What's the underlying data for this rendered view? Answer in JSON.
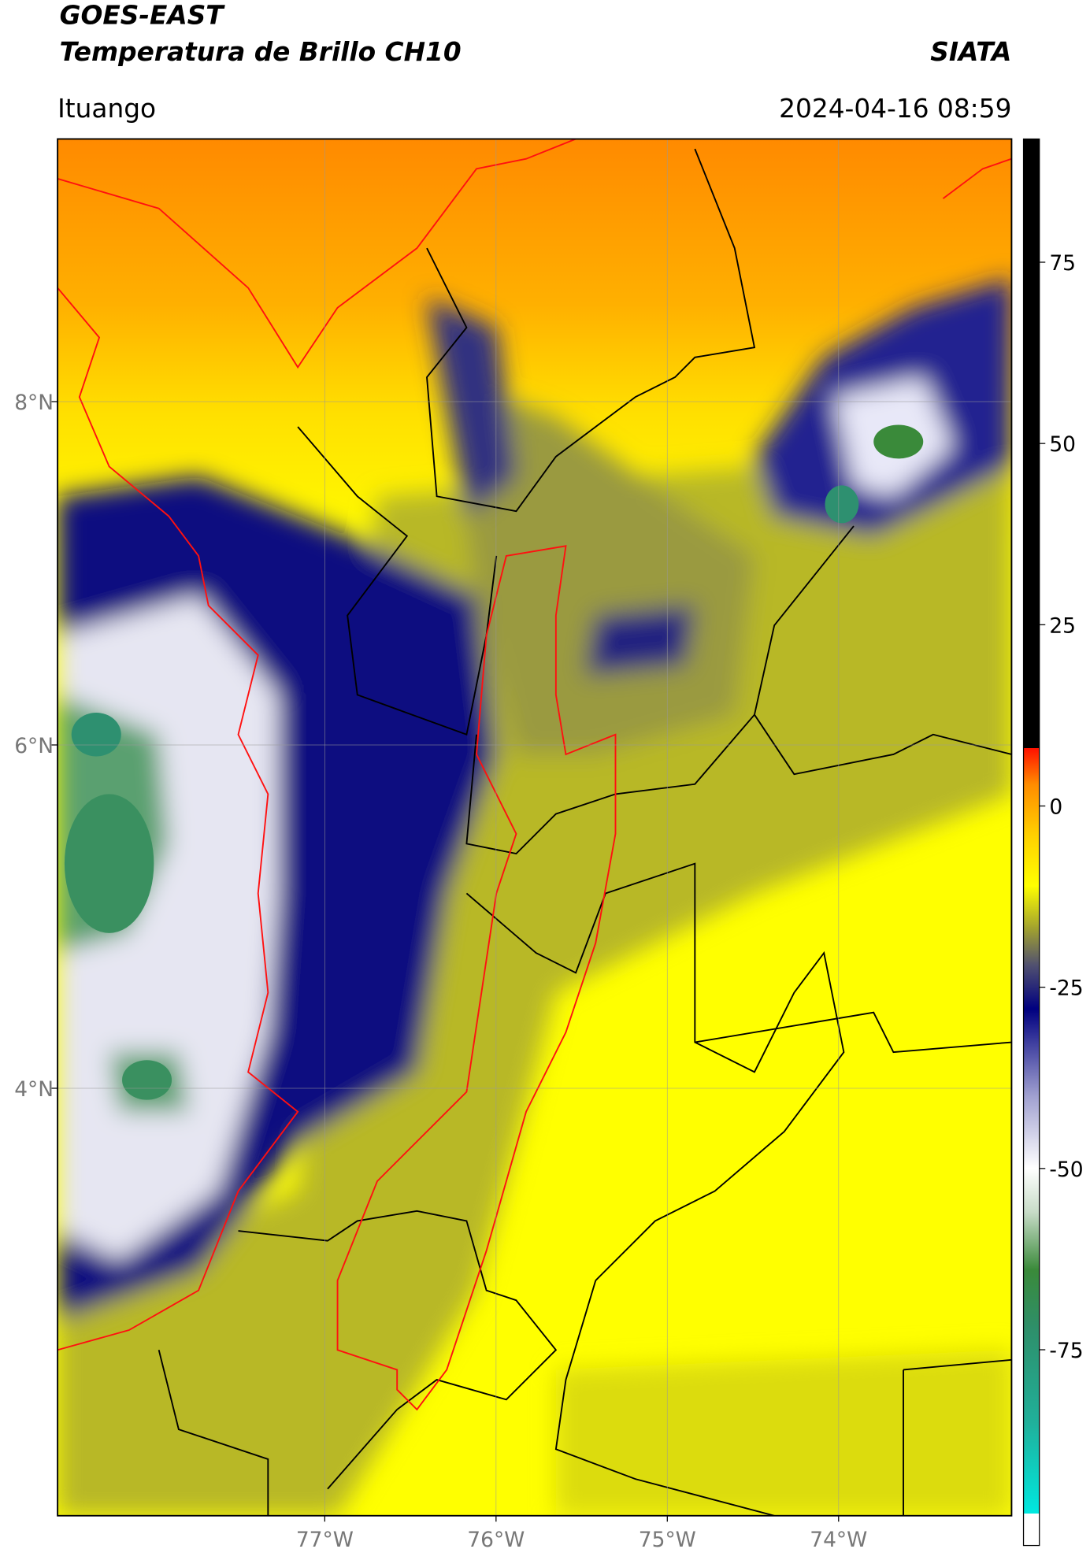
{
  "header": {
    "title": "GOES-EAST",
    "subtitle": "Temperatura de Brillo CH10",
    "brand": "SIATA",
    "location": "Ituango",
    "datetime": "2024-04-16 08:59"
  },
  "map": {
    "lonlim": [
      -78.56,
      -72.99
    ],
    "latlim": [
      1.51,
      9.53
    ],
    "lon_ticks": [
      {
        "value": -77,
        "label": "77°W"
      },
      {
        "value": -76,
        "label": "76°W"
      },
      {
        "value": -75,
        "label": "75°W"
      },
      {
        "value": -74,
        "label": "74°W"
      }
    ],
    "lat_ticks": [
      {
        "value": 8,
        "label": "8°N"
      },
      {
        "value": 6,
        "label": "6°N"
      },
      {
        "value": 4,
        "label": "4°N"
      }
    ],
    "grid": true
  },
  "colorbar": {
    "lim": [
      -102,
      92
    ],
    "ticks": [
      75,
      50,
      25,
      0,
      -25,
      -50,
      -75
    ],
    "colors": [
      {
        "value": -102,
        "color": "#ffffff"
      },
      {
        "value": -97.6,
        "color": "#ffffff"
      },
      {
        "value": -97.6,
        "color": "#00e8e0"
      },
      {
        "value": -85,
        "color": "#20b09a"
      },
      {
        "value": -72,
        "color": "#2e8f6a"
      },
      {
        "value": -64,
        "color": "#3a8a3a"
      },
      {
        "value": -56,
        "color": "#c8dcc8"
      },
      {
        "value": -50,
        "color": "#ffffff"
      },
      {
        "value": -40,
        "color": "#a0a0d0"
      },
      {
        "value": -28,
        "color": "#000080"
      },
      {
        "value": -22,
        "color": "#505070"
      },
      {
        "value": -17,
        "color": "#a0a030"
      },
      {
        "value": -11,
        "color": "#ffff00"
      },
      {
        "value": -4,
        "color": "#ffd000"
      },
      {
        "value": 3,
        "color": "#ff8c00"
      },
      {
        "value": 8,
        "color": "#ff1000"
      },
      {
        "value": 8,
        "color": "#000000"
      },
      {
        "value": 92,
        "color": "#000000"
      }
    ]
  }
}
